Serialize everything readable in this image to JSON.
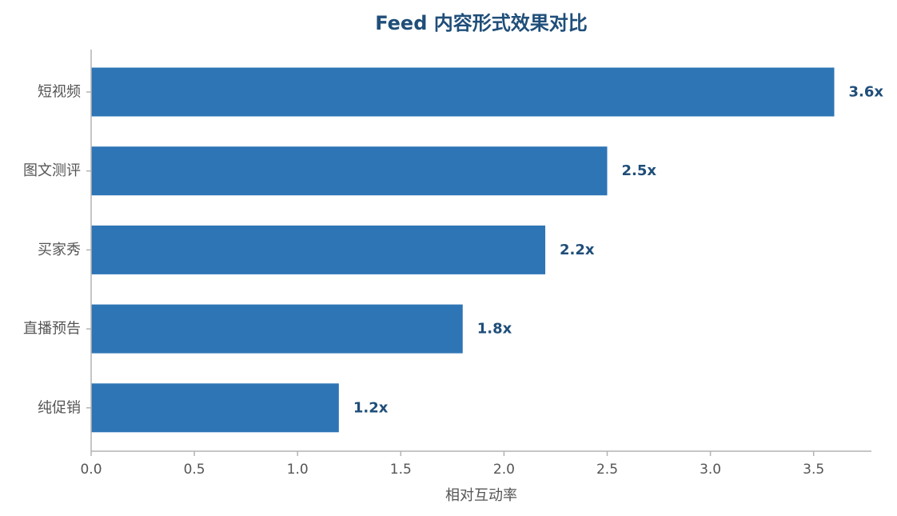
{
  "chart_data": {
    "type": "bar",
    "orientation": "horizontal",
    "title": "Feed 内容形式效果对比",
    "xlabel": "相对互动率",
    "ylabel": "",
    "categories": [
      "短视频",
      "图文测评",
      "买家秀",
      "直播预告",
      "纯促销"
    ],
    "values": [
      3.6,
      2.5,
      2.2,
      1.8,
      1.2
    ],
    "value_labels": [
      "3.6x",
      "2.5x",
      "2.2x",
      "1.8x",
      "1.2x"
    ],
    "xlim": [
      0,
      3.78
    ],
    "xticks": [
      0,
      0.5,
      1.0,
      1.5,
      2.0,
      2.5,
      3.0,
      3.5
    ],
    "xtick_labels": [
      "0.0",
      "0.5",
      "1.0",
      "1.5",
      "2.0",
      "2.5",
      "3.0",
      "3.5"
    ],
    "grid": false,
    "legend": "none",
    "bar_color": "#2e75b6",
    "title_color": "#1f4e79",
    "value_label_color": "#1f4e79"
  }
}
